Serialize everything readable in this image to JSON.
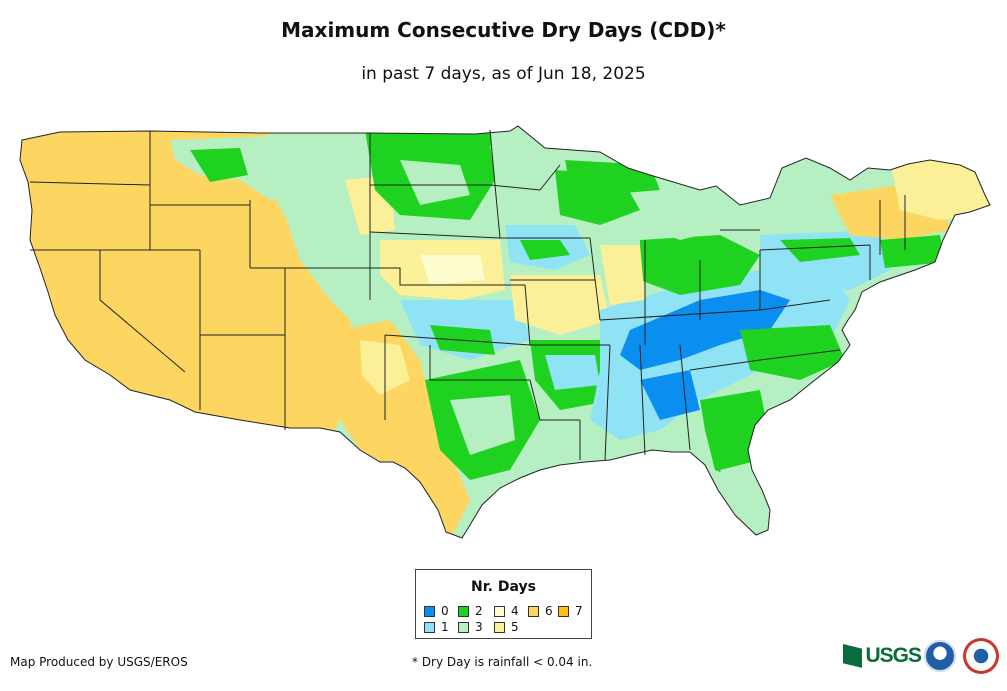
{
  "title": "Maximum Consecutive Dry Days (CDD)*",
  "subtitle": "in past 7 days, as of Jun 18, 2025",
  "legend": {
    "title": "Nr. Days",
    "items": [
      {
        "label": "0",
        "color": "#0a8ff0"
      },
      {
        "label": "1",
        "color": "#8fe3f5"
      },
      {
        "label": "2",
        "color": "#1fd21f"
      },
      {
        "label": "3",
        "color": "#b6f0c2"
      },
      {
        "label": "4",
        "color": "#fcfccf"
      },
      {
        "label": "5",
        "color": "#fbef98"
      },
      {
        "label": "6",
        "color": "#fcd661"
      },
      {
        "label": "7",
        "color": "#fcbf12"
      }
    ]
  },
  "footer": {
    "credit": "Map Produced by USGS/EROS",
    "note": "* Dry Day is rainfall < 0.04 in."
  },
  "logos": {
    "usgs": "USGS",
    "noaa": "noaa-logo",
    "nws": "nws-logo"
  }
}
